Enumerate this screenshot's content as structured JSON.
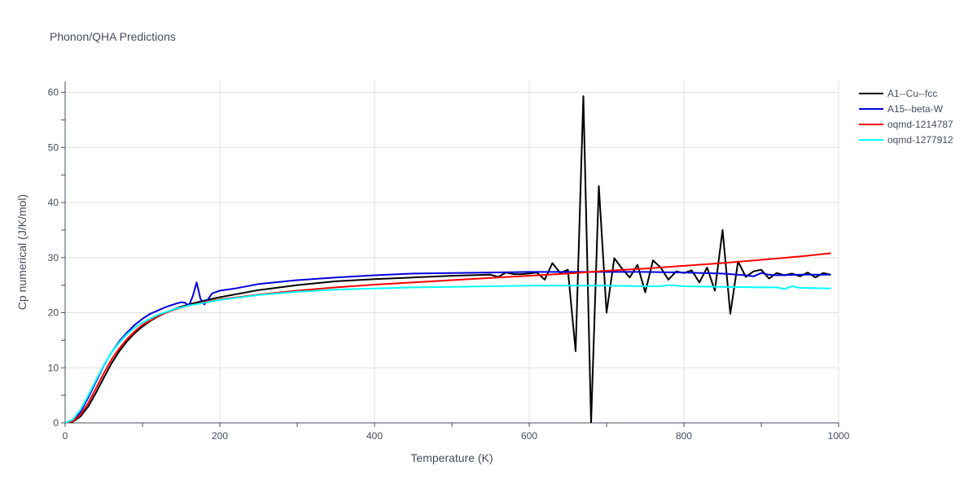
{
  "chart_data": {
    "type": "line",
    "title": "Phonon/QHA Predictions",
    "xlabel": "Temperature (K)",
    "ylabel": "Cp numerical (J/K/mol)",
    "xlim": [
      0,
      1000
    ],
    "ylim": [
      0,
      62
    ],
    "x_ticks": [
      0,
      200,
      400,
      600,
      800,
      1000
    ],
    "y_ticks": [
      0,
      10,
      20,
      30,
      40,
      50,
      60
    ],
    "grid": true,
    "legend_position": "top-right",
    "series": [
      {
        "name": "A1--Cu--fcc",
        "color": "#000000",
        "x": [
          0,
          10,
          20,
          30,
          40,
          50,
          60,
          70,
          80,
          90,
          100,
          110,
          120,
          130,
          140,
          150,
          160,
          180,
          200,
          250,
          300,
          350,
          400,
          450,
          500,
          550,
          560,
          570,
          580,
          590,
          600,
          610,
          620,
          630,
          640,
          650,
          660,
          670,
          680,
          690,
          700,
          710,
          720,
          730,
          740,
          750,
          760,
          770,
          780,
          790,
          800,
          810,
          820,
          830,
          840,
          850,
          860,
          870,
          880,
          890,
          900,
          910,
          920,
          930,
          940,
          950,
          960,
          970,
          980,
          990
        ],
        "y": [
          0,
          0.2,
          1.2,
          3.0,
          5.5,
          8.2,
          10.8,
          13.0,
          14.8,
          16.3,
          17.5,
          18.5,
          19.3,
          20.0,
          20.6,
          21.1,
          21.5,
          22.2,
          22.8,
          24.1,
          25.0,
          25.7,
          26.1,
          26.4,
          26.7,
          26.9,
          26.5,
          27.3,
          27.0,
          27.0,
          27.1,
          27.3,
          26.0,
          29.0,
          27.2,
          27.8,
          13.0,
          59.3,
          0.0,
          43.0,
          20.0,
          29.9,
          28.0,
          26.4,
          28.7,
          23.7,
          29.5,
          28.2,
          26.0,
          27.5,
          27.2,
          27.7,
          25.5,
          28.2,
          24.0,
          35.0,
          19.8,
          29.3,
          26.5,
          27.5,
          27.8,
          26.2,
          27.2,
          26.8,
          27.1,
          26.6,
          27.3,
          26.4,
          27.2,
          26.9
        ]
      },
      {
        "name": "A15--beta-W",
        "color": "#0000dd",
        "x": [
          0,
          10,
          20,
          30,
          40,
          50,
          60,
          70,
          80,
          90,
          100,
          110,
          120,
          130,
          140,
          150,
          155,
          160,
          165,
          170,
          175,
          180,
          190,
          200,
          220,
          250,
          300,
          350,
          400,
          450,
          500,
          550,
          600,
          650,
          700,
          750,
          800,
          850,
          880,
          890,
          900,
          910,
          920,
          950,
          990
        ],
        "y": [
          0,
          0.4,
          2.0,
          4.6,
          7.5,
          10.4,
          12.8,
          14.8,
          16.4,
          17.8,
          18.9,
          19.8,
          20.4,
          21.0,
          21.5,
          21.9,
          21.8,
          21.3,
          23.0,
          25.5,
          22.5,
          21.5,
          23.5,
          24.0,
          24.4,
          25.2,
          25.9,
          26.4,
          26.8,
          27.1,
          27.2,
          27.3,
          27.4,
          27.4,
          27.4,
          27.4,
          27.3,
          27.1,
          26.8,
          26.6,
          27.2,
          26.9,
          26.8,
          26.9,
          26.9
        ]
      },
      {
        "name": "oqmd-1214787",
        "color": "#ff0000",
        "x": [
          0,
          10,
          20,
          30,
          40,
          50,
          60,
          70,
          80,
          90,
          100,
          120,
          140,
          160,
          180,
          200,
          250,
          300,
          350,
          400,
          450,
          500,
          550,
          600,
          650,
          700,
          750,
          800,
          850,
          900,
          950,
          990
        ],
        "y": [
          0,
          0.3,
          1.5,
          3.6,
          6.3,
          9.0,
          11.5,
          13.5,
          15.2,
          16.6,
          17.8,
          19.4,
          20.5,
          21.3,
          21.9,
          22.4,
          23.3,
          24.0,
          24.6,
          25.1,
          25.5,
          25.9,
          26.3,
          26.7,
          27.1,
          27.6,
          28.0,
          28.5,
          29.0,
          29.6,
          30.2,
          30.8
        ]
      },
      {
        "name": "oqmd-1277912",
        "color": "#00ffff",
        "x": [
          0,
          10,
          20,
          30,
          40,
          50,
          60,
          70,
          80,
          90,
          100,
          120,
          140,
          160,
          180,
          200,
          250,
          300,
          350,
          400,
          450,
          500,
          550,
          600,
          650,
          700,
          750,
          770,
          780,
          790,
          800,
          850,
          900,
          920,
          930,
          940,
          950,
          990
        ],
        "y": [
          0,
          0.6,
          2.4,
          5.0,
          7.8,
          10.5,
          12.8,
          14.6,
          16.1,
          17.3,
          18.2,
          19.6,
          20.6,
          21.3,
          21.8,
          22.3,
          23.2,
          23.8,
          24.2,
          24.4,
          24.6,
          24.7,
          24.8,
          24.9,
          24.9,
          24.9,
          24.8,
          24.8,
          25.0,
          24.9,
          24.8,
          24.7,
          24.6,
          24.6,
          24.3,
          24.8,
          24.5,
          24.4
        ]
      }
    ]
  }
}
